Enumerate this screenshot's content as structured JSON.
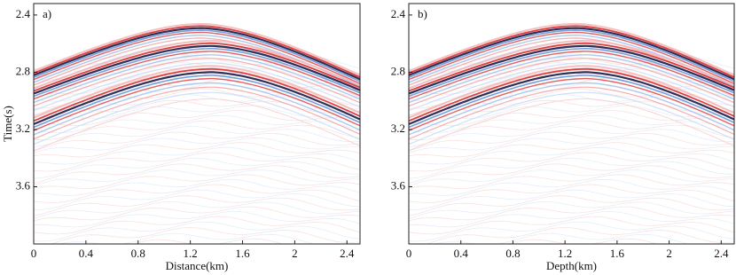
{
  "chart_data": [
    {
      "type": "image",
      "panel_label": "a)",
      "xlabel": "Distance(km)",
      "ylabel": "Time(s)",
      "xlim": [
        0,
        2.5
      ],
      "xticks": [
        0,
        0.4,
        0.8,
        1.2,
        1.6,
        2,
        2.4
      ],
      "ylim": [
        2.32,
        4.0
      ],
      "yticks": [
        2.4,
        2.8,
        3.2,
        3.6
      ]
    },
    {
      "type": "image",
      "panel_label": "b)",
      "xlabel": "Depth(km)",
      "xlim": [
        0,
        2.5
      ],
      "xticks": [
        0,
        0.4,
        0.8,
        1.2,
        1.6,
        2,
        2.4
      ],
      "ylim": [
        2.32,
        4.0
      ],
      "yticks": [
        2.4,
        2.8,
        3.2,
        3.6
      ]
    }
  ]
}
